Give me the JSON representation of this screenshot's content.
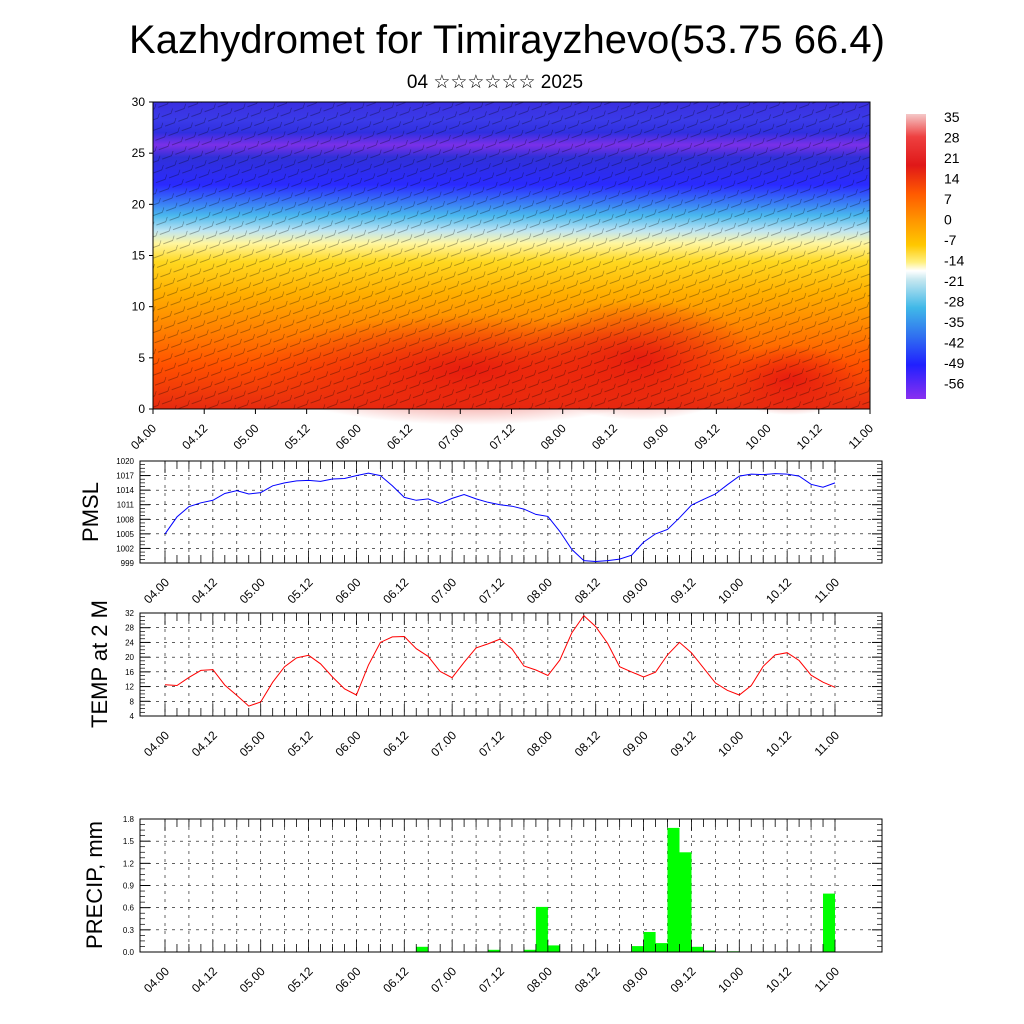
{
  "title": "Kazhydromet for Timirayzhevo(53.75 66.4)",
  "subtitle": "04 ☆☆☆☆☆☆ 2025",
  "time_labels": [
    "04.00",
    "04.12",
    "05.00",
    "05.12",
    "06.00",
    "06.12",
    "07.00",
    "07.12",
    "08.00",
    "08.12",
    "09.00",
    "09.12",
    "10.00",
    "10.12",
    "11.00"
  ],
  "chart_data": [
    {
      "type": "heatmap",
      "yticks": [
        "0",
        "5",
        "10",
        "15",
        "20",
        "25",
        "30"
      ],
      "ylim": [
        0,
        30
      ],
      "colorbar": {
        "labels": [
          "35",
          "28",
          "21",
          "14",
          "7",
          "0",
          "-7",
          "-14",
          "-21",
          "-28",
          "-35",
          "-42",
          "-49",
          "-56"
        ],
        "colors": [
          "#f2c0c0",
          "#e02020",
          "#ff5a00",
          "#ff9a00",
          "#ffc800",
          "#fff080",
          "#c8e8f0",
          "#40b8e8",
          "#3070f0",
          "#2020ff",
          "#8a30f0"
        ]
      }
    },
    {
      "type": "line",
      "ylabel": "PMSL",
      "yticks": [
        "1020",
        "1017",
        "1014",
        "1011",
        "1008",
        "1005",
        "1002",
        "999"
      ],
      "ylim": [
        999,
        1020
      ],
      "color": "#0000ff",
      "x": [
        "04.00",
        "04.03",
        "04.06",
        "04.09",
        "04.12",
        "04.15",
        "04.18",
        "04.21",
        "05.00",
        "05.03",
        "05.06",
        "05.09",
        "05.12",
        "05.15",
        "05.18",
        "05.21",
        "06.00",
        "06.03",
        "06.06",
        "06.09",
        "06.12",
        "06.15",
        "06.18",
        "06.21",
        "07.00",
        "07.03",
        "07.06",
        "07.09",
        "07.12",
        "07.15",
        "07.18",
        "07.21",
        "08.00",
        "08.03",
        "08.06",
        "08.09",
        "08.12",
        "08.15",
        "08.18",
        "08.21",
        "09.00",
        "09.03",
        "09.06",
        "09.09",
        "09.12",
        "09.15",
        "09.18",
        "09.21",
        "10.00",
        "10.03",
        "10.06",
        "10.09",
        "10.12",
        "10.15",
        "10.18",
        "10.21",
        "11.00"
      ],
      "values": [
        1005.0,
        1008.5,
        1010.6,
        1011.4,
        1011.9,
        1013.3,
        1013.9,
        1013.2,
        1013.5,
        1014.9,
        1015.5,
        1015.9,
        1016.0,
        1015.8,
        1016.3,
        1016.4,
        1017.0,
        1017.5,
        1017.0,
        1014.9,
        1012.5,
        1011.9,
        1012.2,
        1011.3,
        1012.3,
        1013.1,
        1012.2,
        1011.5,
        1011.0,
        1010.7,
        1010.1,
        1009.0,
        1008.6,
        1005.5,
        1001.8,
        999.5,
        999.3,
        999.5,
        999.8,
        1000.6,
        1003.3,
        1005.0,
        1005.9,
        1008.3,
        1010.9,
        1012.1,
        1013.2,
        1015.1,
        1016.9,
        1017.3,
        1017.2,
        1017.4,
        1017.3,
        1016.9,
        1015.2,
        1014.6,
        1015.5
      ]
    },
    {
      "type": "line",
      "ylabel": "TEMP at 2 M",
      "yticks": [
        "32",
        "28",
        "24",
        "20",
        "16",
        "12",
        "8",
        "4"
      ],
      "ylim": [
        4,
        32
      ],
      "color": "#ff0000",
      "x": [
        "04.00",
        "04.03",
        "04.06",
        "04.09",
        "04.12",
        "04.15",
        "04.18",
        "04.21",
        "05.00",
        "05.03",
        "05.06",
        "05.09",
        "05.12",
        "05.15",
        "05.18",
        "05.21",
        "06.00",
        "06.03",
        "06.06",
        "06.09",
        "06.12",
        "06.15",
        "06.18",
        "06.21",
        "07.00",
        "07.03",
        "07.06",
        "07.09",
        "07.12",
        "07.15",
        "07.18",
        "07.21",
        "08.00",
        "08.03",
        "08.06",
        "08.09",
        "08.12",
        "08.15",
        "08.18",
        "08.21",
        "09.00",
        "09.03",
        "09.06",
        "09.09",
        "09.12",
        "09.15",
        "09.18",
        "09.21",
        "10.00",
        "10.03",
        "10.06",
        "10.09",
        "10.12",
        "10.15",
        "10.18",
        "10.21",
        "11.00"
      ],
      "values": [
        12.5,
        12.3,
        14.5,
        16.4,
        16.6,
        12.4,
        9.6,
        6.7,
        7.8,
        13.2,
        17.4,
        19.8,
        20.5,
        18.2,
        14.6,
        11.4,
        9.7,
        17.8,
        24.0,
        25.5,
        25.6,
        22.3,
        20.2,
        16.1,
        14.4,
        18.6,
        22.5,
        23.6,
        24.9,
        22.2,
        17.6,
        16.5,
        15.0,
        19.2,
        26.6,
        31.3,
        28.3,
        23.7,
        17.4,
        16.0,
        14.6,
        15.9,
        20.6,
        24.0,
        21.2,
        17.1,
        13.0,
        11.0,
        9.7,
        12.3,
        17.5,
        20.6,
        21.2,
        19.1,
        15.1,
        13.2,
        11.8
      ]
    },
    {
      "type": "bar",
      "ylabel": "PRECIP, mm",
      "yticks": [
        "1.8",
        "1.5",
        "1.2",
        "0.9",
        "0.6",
        "0.3",
        "0.0"
      ],
      "ylim": [
        0,
        1.8
      ],
      "color": "#00ff00",
      "x": [
        "06.18",
        "07.12",
        "07.21",
        "08.00",
        "08.03",
        "09.00",
        "09.03",
        "09.06",
        "09.09",
        "09.12",
        "09.15",
        "09.18",
        "10.00",
        "11.00"
      ],
      "values": [
        0.07,
        0.03,
        0.03,
        0.61,
        0.09,
        0.08,
        0.27,
        0.12,
        1.68,
        1.35,
        0.07,
        0.02,
        0.01,
        0.79
      ]
    }
  ]
}
